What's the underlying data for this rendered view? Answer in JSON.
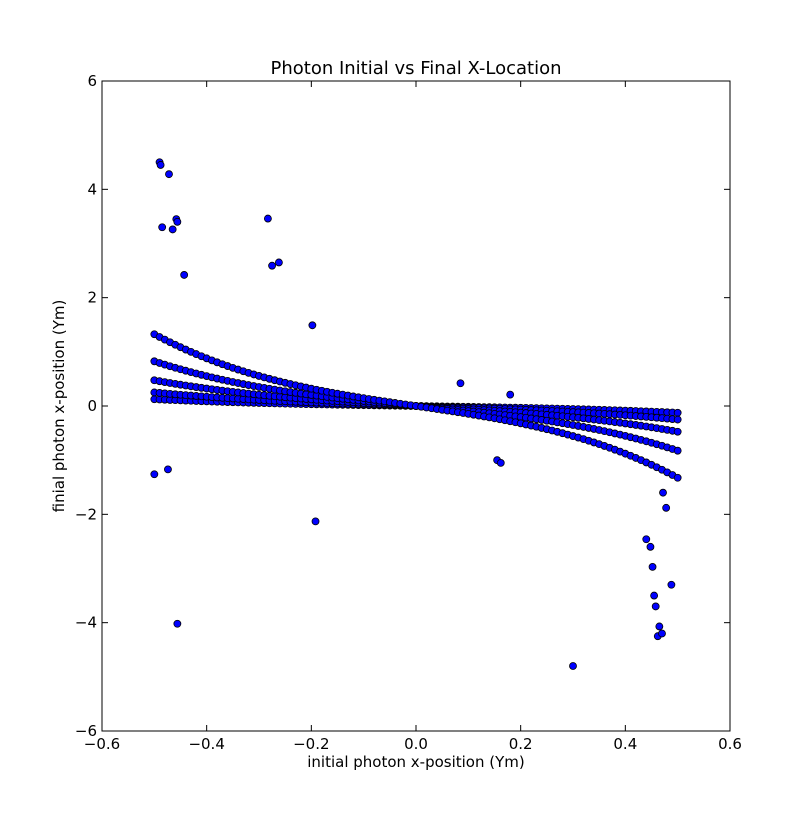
{
  "chart_data": {
    "type": "scatter",
    "title": "Photon Initial vs Final X-Location",
    "xlabel": "initial photon x-position (Ym)",
    "ylabel": "finial photon x-position (Ym)",
    "xlim": [
      -0.6,
      0.6
    ],
    "ylim": [
      -6,
      6
    ],
    "xticks": [
      -0.6,
      -0.4,
      -0.2,
      0.0,
      0.2,
      0.4,
      0.6
    ],
    "xtick_labels": [
      "−0.6",
      "−0.4",
      "−0.2",
      "0.0",
      "0.2",
      "0.4",
      "0.6"
    ],
    "yticks": [
      -6,
      -4,
      -2,
      0,
      2,
      4,
      6
    ],
    "ytick_labels": [
      "−6",
      "−4",
      "−2",
      "0",
      "2",
      "4",
      "6"
    ],
    "grid": false,
    "legend": "none",
    "marker_color": "#0000ff",
    "marker_edge": "#000000",
    "curve_bands": [
      {
        "slope": -0.15,
        "cube": -0.4
      },
      {
        "slope": -0.3,
        "cube": -0.8
      },
      {
        "slope": -0.55,
        "cube": -1.6
      },
      {
        "slope": -0.9,
        "cube": -3.0
      },
      {
        "slope": -1.4,
        "cube": -5.0
      }
    ],
    "x": [
      -0.49,
      -0.488,
      -0.485,
      -0.472,
      -0.465,
      -0.458,
      -0.456,
      -0.443,
      -0.283,
      -0.275,
      -0.262,
      -0.198,
      -0.192,
      -0.5,
      -0.474,
      -0.456,
      0.085,
      0.18,
      0.155,
      0.162,
      0.3,
      0.44,
      0.448,
      0.452,
      0.455,
      0.458,
      0.462,
      0.465,
      0.47,
      0.478,
      0.488,
      0.472
    ],
    "y": [
      4.5,
      4.45,
      3.3,
      4.28,
      3.26,
      3.45,
      3.4,
      2.42,
      3.46,
      2.59,
      2.65,
      1.49,
      -2.13,
      -1.26,
      -1.17,
      -4.02,
      0.42,
      0.21,
      -1.0,
      -1.05,
      -4.8,
      -2.46,
      -2.6,
      -2.97,
      -3.5,
      -3.7,
      -4.25,
      -4.07,
      -4.2,
      -1.88,
      -3.3,
      -1.6
    ]
  }
}
